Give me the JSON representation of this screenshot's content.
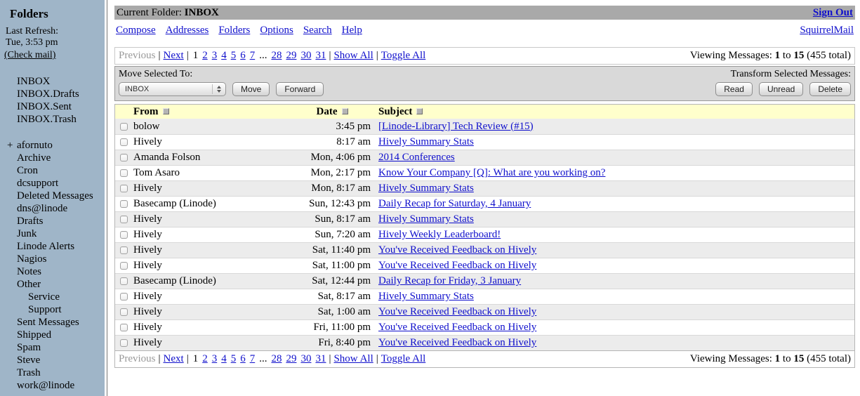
{
  "colors": {
    "sidebar_bg": "#9fb5c8",
    "special": "#8b2230",
    "link": "#0f0fcc",
    "titlebar": "#a9a9a9",
    "toolbar": "#d9d9d9",
    "header_yellow": "#ffffcc",
    "row_alt": "#ececec",
    "muted": "#999999"
  },
  "sidebar": {
    "title": "Folders",
    "last_refresh_label": "Last Refresh:",
    "last_refresh_time": "Tue, 3:53 pm",
    "check_mail": "(Check mail)",
    "special_folders": [
      "INBOX",
      "INBOX.Drafts",
      "INBOX.Sent",
      "INBOX.Trash"
    ],
    "folders": [
      {
        "label": "afornuto",
        "expander": "+"
      },
      {
        "label": "Archive"
      },
      {
        "label": "Cron"
      },
      {
        "label": "dcsupport"
      },
      {
        "label": "Deleted Messages"
      },
      {
        "label": "dns@linode"
      },
      {
        "label": "Drafts"
      },
      {
        "label": "Junk"
      },
      {
        "label": "Linode Alerts"
      },
      {
        "label": "Nagios"
      },
      {
        "label": "Notes"
      },
      {
        "label": "Other"
      },
      {
        "label": "Service",
        "indent": 1
      },
      {
        "label": "Support",
        "indent": 1
      },
      {
        "label": "Sent Messages"
      },
      {
        "label": "Shipped"
      },
      {
        "label": "Spam"
      },
      {
        "label": "Steve"
      },
      {
        "label": "Trash"
      },
      {
        "label": "work@linode"
      }
    ]
  },
  "header": {
    "current_folder_label": "Current Folder:",
    "current_folder": "INBOX",
    "sign_out": "Sign Out",
    "menu": [
      "Compose",
      "Addresses",
      "Folders",
      "Options",
      "Search",
      "Help"
    ],
    "brand": "SquirrelMail"
  },
  "pagination": {
    "previous": "Previous",
    "next": "Next",
    "current_page": "1",
    "pages_left": [
      "2",
      "3",
      "4",
      "5",
      "6",
      "7"
    ],
    "ellipsis": "...",
    "pages_right": [
      "28",
      "29",
      "30",
      "31"
    ],
    "show_all": "Show All",
    "toggle_all": "Toggle All",
    "viewing_label": "Viewing Messages:",
    "from": "1",
    "to_word": "to",
    "to": "15",
    "total": "(455 total)"
  },
  "toolbar": {
    "move_label": "Move Selected To:",
    "move_select_value": "INBOX",
    "move_button": "Move",
    "forward_button": "Forward",
    "transform_label": "Transform Selected Messages:",
    "read_button": "Read",
    "unread_button": "Unread",
    "delete_button": "Delete"
  },
  "table": {
    "columns": {
      "from": "From",
      "date": "Date",
      "subject": "Subject"
    },
    "rows": [
      {
        "from": "bolow",
        "date": "3:45 pm",
        "subject": "[Linode-Library] Tech Review (#15)"
      },
      {
        "from": "Hively",
        "date": "8:17 am",
        "subject": "Hively Summary Stats"
      },
      {
        "from": "Amanda Folson",
        "date": "Mon, 4:06 pm",
        "subject": "2014 Conferences"
      },
      {
        "from": "Tom Asaro",
        "date": "Mon, 2:17 pm",
        "subject": "Know Your Company [Q]: What are you working on?"
      },
      {
        "from": "Hively",
        "date": "Mon, 8:17 am",
        "subject": "Hively Summary Stats"
      },
      {
        "from": "Basecamp (Linode)",
        "date": "Sun, 12:43 pm",
        "subject": "Daily Recap for Saturday, 4 January"
      },
      {
        "from": "Hively",
        "date": "Sun, 8:17 am",
        "subject": "Hively Summary Stats"
      },
      {
        "from": "Hively",
        "date": "Sun, 7:20 am",
        "subject": "Hively Weekly Leaderboard!"
      },
      {
        "from": "Hively",
        "date": "Sat, 11:40 pm",
        "subject": "You've Received Feedback on Hively"
      },
      {
        "from": "Hively",
        "date": "Sat, 11:00 pm",
        "subject": "You've Received Feedback on Hively"
      },
      {
        "from": "Basecamp (Linode)",
        "date": "Sat, 12:44 pm",
        "subject": "Daily Recap for Friday, 3 January"
      },
      {
        "from": "Hively",
        "date": "Sat, 8:17 am",
        "subject": "Hively Summary Stats"
      },
      {
        "from": "Hively",
        "date": "Sat, 1:00 am",
        "subject": "You've Received Feedback on Hively"
      },
      {
        "from": "Hively",
        "date": "Fri, 11:00 pm",
        "subject": "You've Received Feedback on Hively"
      },
      {
        "from": "Hively",
        "date": "Fri, 8:40 pm",
        "subject": "You've Received Feedback on Hively"
      }
    ]
  }
}
